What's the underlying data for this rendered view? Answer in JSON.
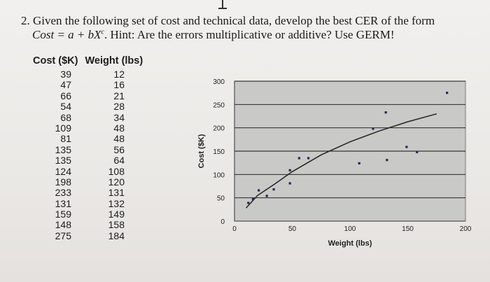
{
  "problem": {
    "line1": "2. Given the following set of cost and technical data, develop the best CER of the form",
    "line2_prefix": "Cost",
    "formula_base": " = a + bX",
    "formula_exp": "c",
    "line2_rest": ". Hint: Are the errors multiplicative or additive? Use GERM!"
  },
  "table": {
    "headers": {
      "cost": "Cost ($K)",
      "weight": "Weight (lbs)"
    },
    "rows": [
      {
        "cost": "39",
        "weight": "12"
      },
      {
        "cost": "47",
        "weight": "16"
      },
      {
        "cost": "66",
        "weight": "21"
      },
      {
        "cost": "54",
        "weight": "28"
      },
      {
        "cost": "68",
        "weight": "34"
      },
      {
        "cost": "109",
        "weight": "48"
      },
      {
        "cost": "81",
        "weight": "48"
      },
      {
        "cost": "135",
        "weight": "56"
      },
      {
        "cost": "135",
        "weight": "64"
      },
      {
        "cost": "124",
        "weight": "108"
      },
      {
        "cost": "198",
        "weight": "120"
      },
      {
        "cost": "233",
        "weight": "131"
      },
      {
        "cost": "131",
        "weight": "132"
      },
      {
        "cost": "159",
        "weight": "149"
      },
      {
        "cost": "148",
        "weight": "158"
      },
      {
        "cost": "275",
        "weight": "184"
      }
    ]
  },
  "chart_data": {
    "type": "scatter",
    "title": "",
    "xlabel": "Weight (lbs)",
    "ylabel": "Cost ($K)",
    "xlim": [
      0,
      200
    ],
    "ylim": [
      0,
      300
    ],
    "x_ticks": [
      "0",
      "50",
      "100",
      "150",
      "200"
    ],
    "y_ticks": [
      "0",
      "50",
      "100",
      "150",
      "200",
      "250",
      "300"
    ],
    "grid": "horizontal",
    "legend": "none",
    "points": [
      {
        "x": 12,
        "y": 39
      },
      {
        "x": 16,
        "y": 47
      },
      {
        "x": 21,
        "y": 66
      },
      {
        "x": 28,
        "y": 54
      },
      {
        "x": 34,
        "y": 68
      },
      {
        "x": 48,
        "y": 109
      },
      {
        "x": 48,
        "y": 81
      },
      {
        "x": 56,
        "y": 135
      },
      {
        "x": 64,
        "y": 135
      },
      {
        "x": 108,
        "y": 124
      },
      {
        "x": 120,
        "y": 198
      },
      {
        "x": 131,
        "y": 233
      },
      {
        "x": 132,
        "y": 131
      },
      {
        "x": 149,
        "y": 159
      },
      {
        "x": 158,
        "y": 148
      },
      {
        "x": 184,
        "y": 275
      }
    ],
    "trendline": [
      {
        "x": 10,
        "y": 28
      },
      {
        "x": 20,
        "y": 55
      },
      {
        "x": 35,
        "y": 80
      },
      {
        "x": 50,
        "y": 106
      },
      {
        "x": 75,
        "y": 142
      },
      {
        "x": 100,
        "y": 170
      },
      {
        "x": 125,
        "y": 193
      },
      {
        "x": 150,
        "y": 213
      },
      {
        "x": 175,
        "y": 230
      }
    ],
    "colors": {
      "plot_bg": "#c9c9c7",
      "point": "#1f2a55",
      "line": "#222222",
      "grid": "#111111"
    }
  }
}
